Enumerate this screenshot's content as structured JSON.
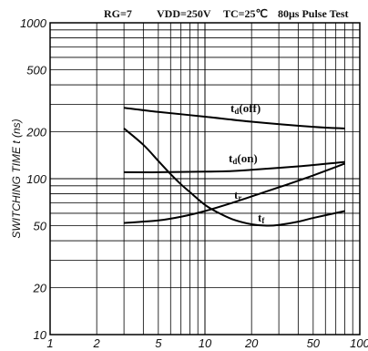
{
  "chart_data": {
    "type": "line",
    "conditions": {
      "rg": "RG=7",
      "vdd": "VDD=250V",
      "tc": "TC=25℃",
      "pulse": "80μs Pulse Test"
    },
    "ylabel": "SWITCHING TIME  t (ns)",
    "xlabel": "",
    "xscale": "log",
    "yscale": "log",
    "xlim": [
      1,
      100
    ],
    "ylim": [
      10,
      1000
    ],
    "x_ticks": [
      "1",
      "2",
      "5",
      "10",
      "20",
      "50",
      "100"
    ],
    "y_ticks": [
      "10",
      "20",
      "50",
      "100",
      "200",
      "500",
      "1000"
    ],
    "series": [
      {
        "name": "td(off)",
        "label_main": "t",
        "label_sub": "d",
        "label_tail": "(off)",
        "points": [
          [
            3,
            285
          ],
          [
            5,
            268
          ],
          [
            10,
            250
          ],
          [
            20,
            232
          ],
          [
            50,
            215
          ],
          [
            80,
            210
          ]
        ]
      },
      {
        "name": "td(on)",
        "label_main": "t",
        "label_sub": "d",
        "label_tail": "(on)",
        "points": [
          [
            3,
            110
          ],
          [
            5,
            110
          ],
          [
            10,
            111
          ],
          [
            15,
            112
          ],
          [
            20,
            114
          ],
          [
            40,
            120
          ],
          [
            80,
            128
          ]
        ]
      },
      {
        "name": "tr",
        "label_main": "t",
        "label_sub": "r",
        "label_tail": "",
        "points": [
          [
            3,
            52
          ],
          [
            5,
            54
          ],
          [
            7,
            57
          ],
          [
            10,
            62
          ],
          [
            15,
            70
          ],
          [
            20,
            77
          ],
          [
            30,
            88
          ],
          [
            50,
            105
          ],
          [
            80,
            125
          ]
        ]
      },
      {
        "name": "tf",
        "label_main": "t",
        "label_sub": "f",
        "label_tail": "",
        "points": [
          [
            3,
            210
          ],
          [
            4,
            165
          ],
          [
            5,
            130
          ],
          [
            6,
            107
          ],
          [
            7,
            92
          ],
          [
            8,
            82
          ],
          [
            10,
            68
          ],
          [
            12,
            61
          ],
          [
            15,
            55
          ],
          [
            20,
            51
          ],
          [
            25,
            50
          ],
          [
            30,
            50.5
          ],
          [
            40,
            53
          ],
          [
            50,
            56
          ],
          [
            80,
            62
          ]
        ]
      }
    ]
  }
}
